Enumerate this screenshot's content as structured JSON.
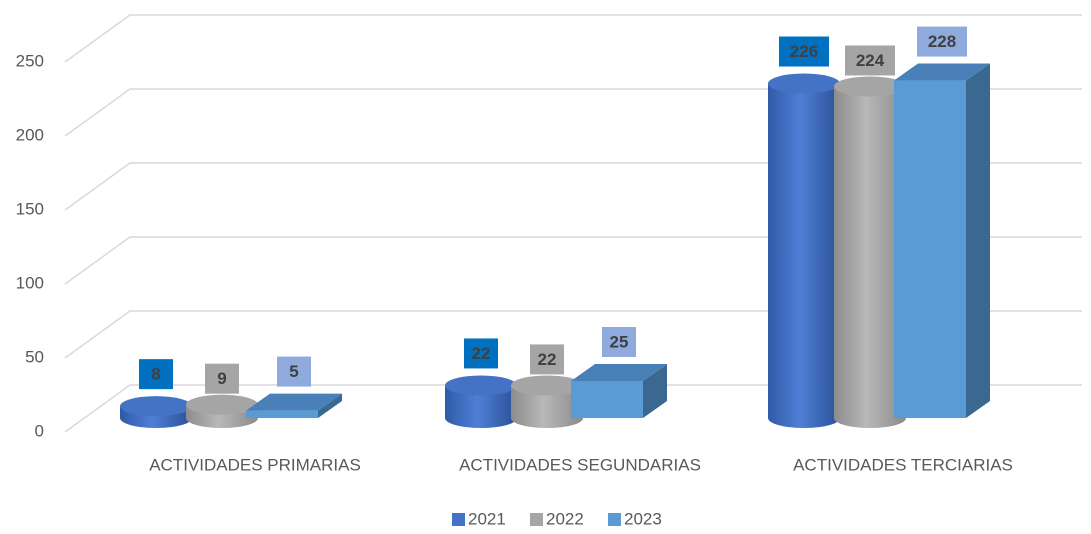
{
  "chart_data": {
    "type": "bar3d",
    "categories": [
      "ACTIVIDADES PRIMARIAS",
      "ACTIVIDADES SEGUNDARIAS",
      "ACTIVIDADES TERCIARIAS"
    ],
    "series": [
      {
        "name": "2021",
        "color": "#4472c4",
        "label_color": "#0070c0",
        "shape": "cylinder",
        "values": [
          8,
          22,
          226
        ]
      },
      {
        "name": "2022",
        "color": "#a5a5a5",
        "label_color": "#a5a5a5",
        "shape": "cylinder",
        "values": [
          9,
          22,
          224
        ]
      },
      {
        "name": "2023",
        "color": "#5b9bd5",
        "label_color": "#8faadc",
        "shape": "box",
        "values": [
          5,
          25,
          228
        ]
      }
    ],
    "ylim": [
      0,
      250
    ],
    "yticks": [
      0,
      50,
      100,
      150,
      200,
      250
    ],
    "grid": true,
    "legend": "bottom"
  }
}
